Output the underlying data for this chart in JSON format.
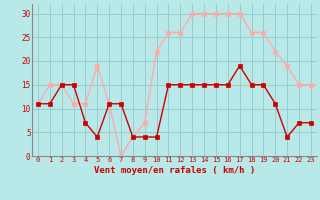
{
  "hours": [
    0,
    1,
    2,
    3,
    4,
    5,
    6,
    7,
    8,
    9,
    10,
    11,
    12,
    13,
    14,
    15,
    16,
    17,
    18,
    19,
    20,
    21,
    22,
    23
  ],
  "wind_avg": [
    11,
    11,
    15,
    15,
    7,
    4,
    11,
    11,
    4,
    4,
    4,
    15,
    15,
    15,
    15,
    15,
    15,
    19,
    15,
    15,
    11,
    4,
    7,
    7
  ],
  "wind_gusts": [
    11,
    15,
    15,
    11,
    11,
    19,
    11,
    0,
    4,
    7,
    22,
    26,
    26,
    30,
    30,
    30,
    30,
    30,
    26,
    26,
    22,
    19,
    15,
    15
  ],
  "wind_avg_color": "#cc0000",
  "wind_gusts_color": "#ffaaaa",
  "bg_color": "#b8e8e8",
  "grid_color": "#99cccc",
  "xlabel": "Vent moyen/en rafales ( km/h )",
  "xlabel_color": "#cc0000",
  "tick_color": "#cc0000",
  "ylim": [
    0,
    32
  ],
  "yticks": [
    0,
    5,
    10,
    15,
    20,
    25,
    30
  ],
  "spine_color": "#888888"
}
